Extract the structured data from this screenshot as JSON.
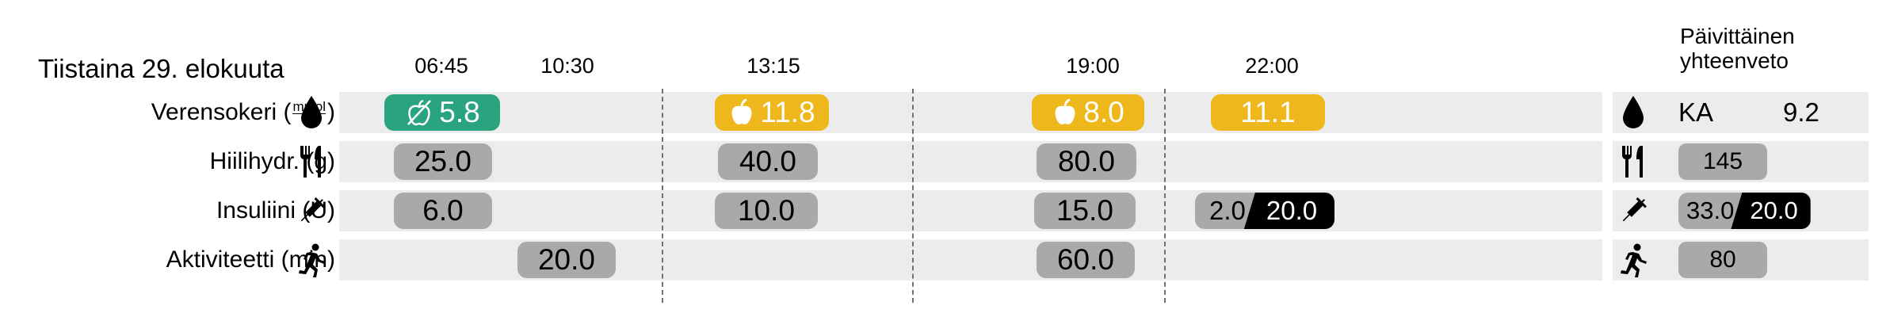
{
  "date": "Tiistaina 29. elokuuta",
  "times": [
    "06:45",
    "10:30",
    "13:15",
    "19:00",
    "22:00"
  ],
  "rows": {
    "glucose": {
      "label": "Verensokeri (",
      "unit_num": "mmol",
      "unit_den": "L",
      "unit_close": ")"
    },
    "carbs": {
      "label": "Hiilihydr. (g)"
    },
    "insulin": {
      "label": "Insuliini (U)"
    },
    "activity": {
      "label": "Aktiviteetti (min)"
    }
  },
  "glucose_values": [
    {
      "value": "5.8",
      "state": "normal",
      "icon": "crossed-apple-icon"
    },
    {
      "value": "11.8",
      "state": "high",
      "icon": "apple-icon"
    },
    {
      "value": "8.0",
      "state": "high",
      "icon": "apple-icon"
    },
    {
      "value": "11.1",
      "state": "high",
      "icon": ""
    }
  ],
  "carbs_values": [
    "25.0",
    "40.0",
    "80.0"
  ],
  "insulin_values": [
    "6.0",
    "10.0",
    "15.0"
  ],
  "insulin_split": {
    "a": "2.0",
    "b": "20.0"
  },
  "activity_values": [
    "20.0",
    "60.0"
  ],
  "summary": {
    "title_line1": "Päivittäinen",
    "title_line2": "yhteenveto",
    "avg_label": "KA",
    "avg_value": "9.2",
    "carbs_total": "145",
    "insulin_a": "33.0",
    "insulin_b": "20.0",
    "activity_total": "80"
  },
  "colors": {
    "normal": "#2aa37f",
    "high": "#eeb71c",
    "pill": "#a9a9a9",
    "row": "#ececec"
  }
}
